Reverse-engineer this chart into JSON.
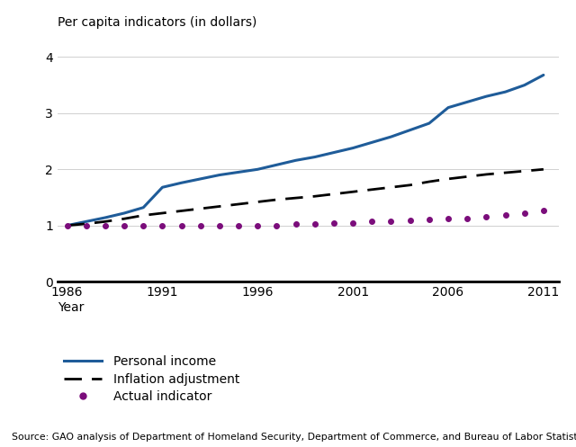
{
  "years": [
    1986,
    1987,
    1988,
    1989,
    1990,
    1991,
    1992,
    1993,
    1994,
    1995,
    1996,
    1997,
    1998,
    1999,
    2000,
    2001,
    2002,
    2003,
    2004,
    2005,
    2006,
    2007,
    2008,
    2009,
    2010,
    2011
  ],
  "personal_income": [
    1.0,
    1.07,
    1.14,
    1.22,
    1.32,
    1.68,
    1.76,
    1.83,
    1.9,
    1.95,
    2.0,
    2.08,
    2.16,
    2.22,
    2.3,
    2.38,
    2.48,
    2.58,
    2.7,
    2.82,
    3.1,
    3.2,
    3.3,
    3.38,
    3.5,
    3.68
  ],
  "inflation_adjustment": [
    1.0,
    1.03,
    1.07,
    1.12,
    1.18,
    1.22,
    1.26,
    1.3,
    1.34,
    1.38,
    1.42,
    1.46,
    1.49,
    1.52,
    1.56,
    1.6,
    1.64,
    1.68,
    1.72,
    1.78,
    1.83,
    1.87,
    1.91,
    1.94,
    1.97,
    2.0
  ],
  "actual_indicator": [
    1.0,
    1.0,
    1.0,
    1.0,
    1.0,
    1.0,
    1.0,
    1.0,
    1.0,
    1.0,
    1.0,
    1.0,
    1.02,
    1.03,
    1.04,
    1.05,
    1.07,
    1.08,
    1.09,
    1.1,
    1.12,
    1.13,
    1.15,
    1.18,
    1.22,
    1.27
  ],
  "personal_income_color": "#1F5C99",
  "inflation_color": "#000000",
  "actual_color": "#7B0D7B",
  "ylabel": "Per capita indicators (in dollars)",
  "xlabel": "Year",
  "ylim": [
    0,
    4.3
  ],
  "xlim": [
    1985.5,
    2011.8
  ],
  "yticks": [
    0,
    1,
    2,
    3,
    4
  ],
  "xticks": [
    1986,
    1991,
    1996,
    2001,
    2006,
    2011
  ],
  "legend_personal": "Personal income",
  "legend_inflation": "Inflation adjustment",
  "legend_actual": "Actual indicator",
  "source_text": "Source: GAO analysis of Department of Homeland Security, Department of Commerce, and Bureau of Labor Statistics data.",
  "background_color": "#ffffff"
}
